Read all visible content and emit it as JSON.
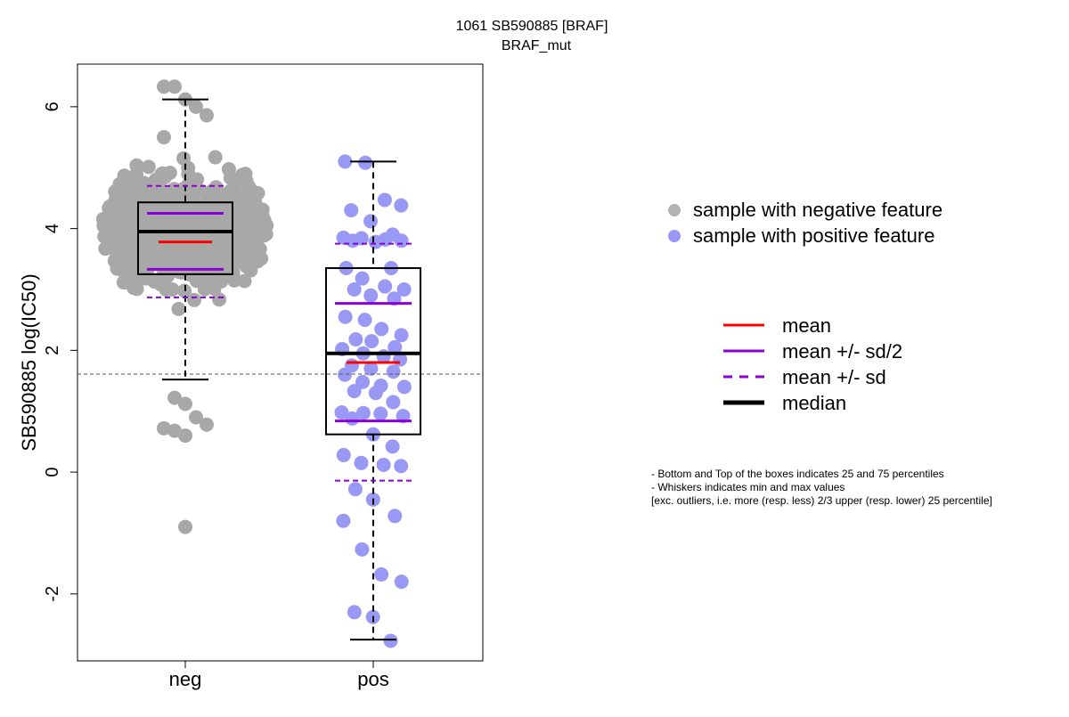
{
  "chart_data": {
    "type": "boxplot",
    "title": "1061 SB590885 [BRAF]",
    "subtitle": "BRAF_mut",
    "ylabel": "SB590885 log(IC50)",
    "xlabel": "",
    "categories": [
      "neg",
      "pos"
    ],
    "ylim": [
      -3.1,
      6.7
    ],
    "yticks": [
      -2,
      0,
      2,
      4,
      6
    ],
    "ytick_labels": [
      "-2",
      "0",
      "2",
      "4",
      "6"
    ],
    "reference_line": 1.61,
    "boxes": [
      {
        "category": "neg",
        "min": 1.52,
        "q1": 3.25,
        "median": 3.95,
        "q3": 4.43,
        "max": 6.12,
        "mean": 3.78,
        "mean_minus_half_sd": 3.33,
        "mean_plus_half_sd": 4.25,
        "mean_minus_sd": 2.87,
        "mean_plus_sd": 4.7,
        "outliers": [
          -0.9
        ],
        "point_color": "#a8a8a8"
      },
      {
        "category": "pos",
        "min": -2.75,
        "q1": 0.62,
        "median": 1.95,
        "q3": 3.35,
        "max": 5.1,
        "mean": 1.8,
        "mean_minus_half_sd": 0.84,
        "mean_plus_half_sd": 2.77,
        "mean_minus_sd": -0.14,
        "mean_plus_sd": 3.75,
        "outliers": [],
        "point_color": "#9999f5"
      }
    ],
    "legend_points": [
      {
        "label": "sample with negative feature",
        "color": "#b3b3b3"
      },
      {
        "label": "sample with positive feature",
        "color": "#9999f5"
      }
    ],
    "legend_lines": [
      {
        "label": "mean",
        "color": "#ff0000",
        "style": "solid"
      },
      {
        "label": "mean +/- sd/2",
        "color": "#8b00d9",
        "style": "solid"
      },
      {
        "label": "mean +/- sd",
        "color": "#8b00d9",
        "style": "dashed"
      },
      {
        "label": "median",
        "color": "#000000",
        "style": "solid-thick"
      }
    ],
    "notes": [
      "- Bottom and Top of the boxes indicates 25 and 75 percentiles",
      "- Whiskers indicates min and max values",
      "[exc. outliers, i.e. more (resp. less) 2/3 upper (resp. lower) 25 percentile]"
    ],
    "grid": false
  }
}
